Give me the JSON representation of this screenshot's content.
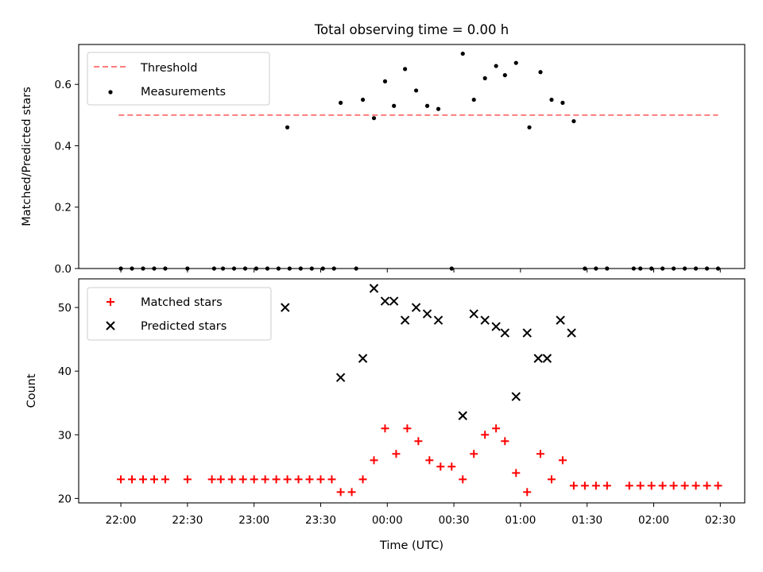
{
  "chart_data": [
    {
      "type": "scatter",
      "title": "Total observing time = 0.00 h",
      "xlabel": "",
      "ylabel": "Matched/Predicted stars",
      "ylim": [
        0,
        0.73
      ],
      "yticks": [
        0.0,
        0.2,
        0.4,
        0.6
      ],
      "ytick_labels": [
        "0.0",
        "0.2",
        "0.4",
        "0.6"
      ],
      "legend": {
        "placement": "upper-left",
        "entries": [
          "Threshold",
          "Measurements"
        ]
      },
      "threshold": {
        "name": "Threshold",
        "value": 0.5,
        "x_range": [
          "21:59",
          "02:29"
        ],
        "color": "#ff7b7b",
        "style": "dashed"
      },
      "series": [
        {
          "name": "Measurements",
          "color": "#000000",
          "marker": "dot",
          "points": [
            [
              "22:00",
              0
            ],
            [
              "22:05",
              0
            ],
            [
              "22:10",
              0
            ],
            [
              "22:15",
              0
            ],
            [
              "22:20",
              0
            ],
            [
              "22:30",
              0
            ],
            [
              "22:42",
              0
            ],
            [
              "22:46",
              0
            ],
            [
              "22:51",
              0
            ],
            [
              "22:56",
              0
            ],
            [
              "23:01",
              0
            ],
            [
              "23:06",
              0
            ],
            [
              "23:11",
              0
            ],
            [
              "23:16",
              0
            ],
            [
              "23:21",
              0
            ],
            [
              "23:26",
              0
            ],
            [
              "23:31",
              0
            ],
            [
              "23:36",
              0
            ],
            [
              "23:46",
              0
            ],
            [
              "23:15",
              0.46
            ],
            [
              "23:39",
              0.54
            ],
            [
              "23:49",
              0.55
            ],
            [
              "23:54",
              0.49
            ],
            [
              "23:59",
              0.61
            ],
            [
              "00:03",
              0.53
            ],
            [
              "00:08",
              0.65
            ],
            [
              "00:13",
              0.58
            ],
            [
              "00:18",
              0.53
            ],
            [
              "00:23",
              0.52
            ],
            [
              "00:29",
              0
            ],
            [
              "00:34",
              0.7
            ],
            [
              "00:39",
              0.55
            ],
            [
              "00:44",
              0.62
            ],
            [
              "00:49",
              0.66
            ],
            [
              "00:53",
              0.63
            ],
            [
              "00:58",
              0.67
            ],
            [
              "01:04",
              0.46
            ],
            [
              "01:09",
              0.64
            ],
            [
              "01:14",
              0.55
            ],
            [
              "01:19",
              0.54
            ],
            [
              "01:24",
              0.48
            ],
            [
              "01:29",
              0
            ],
            [
              "01:34",
              0
            ],
            [
              "01:39",
              0
            ],
            [
              "01:51",
              0
            ],
            [
              "01:54",
              0
            ],
            [
              "01:59",
              0
            ],
            [
              "02:04",
              0
            ],
            [
              "02:09",
              0
            ],
            [
              "02:14",
              0
            ],
            [
              "02:19",
              0
            ],
            [
              "02:24",
              0
            ],
            [
              "02:29",
              0
            ]
          ]
        }
      ]
    },
    {
      "type": "scatter",
      "title": "",
      "xlabel": "Time (UTC)",
      "ylabel": "Count",
      "ylim": [
        19.3,
        54.5
      ],
      "yticks": [
        20,
        30,
        40,
        50
      ],
      "ytick_labels": [
        "20",
        "30",
        "40",
        "50"
      ],
      "xlim": [
        "21:41",
        "02:41"
      ],
      "xticks": [
        "22:00",
        "22:30",
        "23:00",
        "23:30",
        "00:00",
        "00:30",
        "01:00",
        "01:30",
        "02:00",
        "02:30"
      ],
      "legend": {
        "placement": "upper-left",
        "entries": [
          "Matched stars",
          "Predicted stars"
        ]
      },
      "series": [
        {
          "name": "Matched stars",
          "color": "#ff0000",
          "marker": "plus",
          "points": [
            [
              "22:00",
              23
            ],
            [
              "22:05",
              23
            ],
            [
              "22:10",
              23
            ],
            [
              "22:15",
              23
            ],
            [
              "22:20",
              23
            ],
            [
              "22:30",
              23
            ],
            [
              "22:41",
              23
            ],
            [
              "22:45",
              23
            ],
            [
              "22:50",
              23
            ],
            [
              "22:55",
              23
            ],
            [
              "23:00",
              23
            ],
            [
              "23:05",
              23
            ],
            [
              "23:10",
              23
            ],
            [
              "23:15",
              23
            ],
            [
              "23:20",
              23
            ],
            [
              "23:25",
              23
            ],
            [
              "23:30",
              23
            ],
            [
              "23:35",
              23
            ],
            [
              "23:39",
              21
            ],
            [
              "23:44",
              21
            ],
            [
              "23:49",
              23
            ],
            [
              "23:54",
              26
            ],
            [
              "23:59",
              31
            ],
            [
              "00:04",
              27
            ],
            [
              "00:09",
              31
            ],
            [
              "00:14",
              29
            ],
            [
              "00:19",
              26
            ],
            [
              "00:24",
              25
            ],
            [
              "00:29",
              25
            ],
            [
              "00:34",
              23
            ],
            [
              "00:39",
              27
            ],
            [
              "00:44",
              30
            ],
            [
              "00:49",
              31
            ],
            [
              "00:53",
              29
            ],
            [
              "00:58",
              24
            ],
            [
              "01:03",
              21
            ],
            [
              "01:09",
              27
            ],
            [
              "01:14",
              23
            ],
            [
              "01:19",
              26
            ],
            [
              "01:24",
              22
            ],
            [
              "01:29",
              22
            ],
            [
              "01:34",
              22
            ],
            [
              "01:39",
              22
            ],
            [
              "01:49",
              22
            ],
            [
              "01:54",
              22
            ],
            [
              "01:59",
              22
            ],
            [
              "02:04",
              22
            ],
            [
              "02:09",
              22
            ],
            [
              "02:14",
              22
            ],
            [
              "02:19",
              22
            ],
            [
              "02:24",
              22
            ],
            [
              "02:29",
              22
            ]
          ]
        },
        {
          "name": "Predicted stars",
          "color": "#000000",
          "marker": "x",
          "points": [
            [
              "23:14",
              50
            ],
            [
              "23:39",
              39
            ],
            [
              "23:49",
              42
            ],
            [
              "23:54",
              53
            ],
            [
              "23:59",
              51
            ],
            [
              "00:03",
              51
            ],
            [
              "00:08",
              48
            ],
            [
              "00:13",
              50
            ],
            [
              "00:18",
              49
            ],
            [
              "00:23",
              48
            ],
            [
              "00:34",
              33
            ],
            [
              "00:39",
              49
            ],
            [
              "00:44",
              48
            ],
            [
              "00:49",
              47
            ],
            [
              "00:53",
              46
            ],
            [
              "00:58",
              36
            ],
            [
              "01:03",
              46
            ],
            [
              "01:08",
              42
            ],
            [
              "01:12",
              42
            ],
            [
              "01:18",
              48
            ],
            [
              "01:23",
              46
            ]
          ]
        }
      ]
    }
  ]
}
